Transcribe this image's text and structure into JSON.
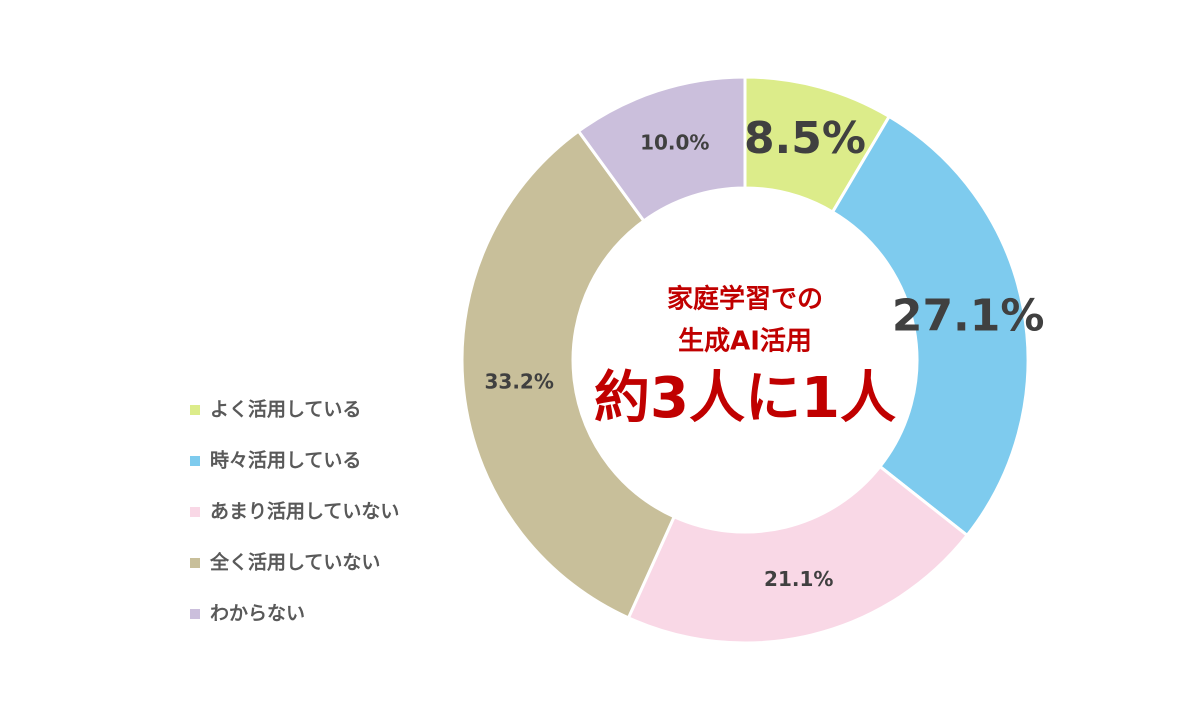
{
  "chart_data": {
    "type": "donut",
    "annotations": [
      "家庭学習での",
      "生成AI活用",
      "約3人に1人"
    ],
    "categories": [
      "よく活用している",
      "時々活用している",
      "あまり活用していない",
      "全く活用していない",
      "わからない"
    ],
    "values": [
      8.5,
      27.1,
      21.1,
      33.2,
      10.0
    ],
    "value_labels": [
      "8.5%",
      "27.1%",
      "21.1%",
      "33.2%",
      "10.0%"
    ],
    "colors": [
      "#dcec8a",
      "#7ecbee",
      "#f9d8e6",
      "#c8bf9a",
      "#cbbfdc"
    ],
    "legend": "left"
  }
}
